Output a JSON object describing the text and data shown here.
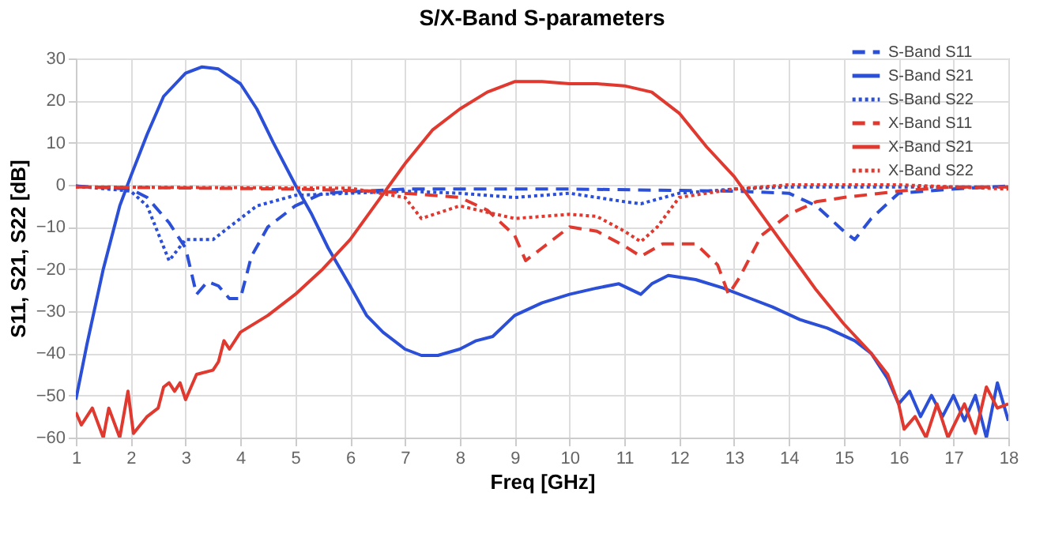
{
  "chart_data": {
    "type": "line",
    "title": "S/X-Band S-parameters",
    "xlabel": "Freq [GHz]",
    "ylabel": "S11, S21, S22 [dB]",
    "xlim": [
      1,
      18
    ],
    "xticks": [
      1,
      2,
      3,
      4,
      5,
      6,
      7,
      8,
      9,
      10,
      11,
      12,
      13,
      14,
      15,
      16,
      17,
      18
    ],
    "ylim": [
      -60,
      30
    ],
    "yticks": [
      -60,
      -50,
      -40,
      -30,
      -20,
      -10,
      0,
      10,
      20,
      30
    ],
    "grid": true,
    "legend": "top right",
    "series": [
      {
        "name": "S-Band S11",
        "color": "#2b4fd6",
        "line_style": "dashed",
        "x": [
          1,
          2,
          2.3,
          2.7,
          3,
          3.2,
          3.4,
          3.6,
          3.8,
          4,
          4.2,
          4.5,
          5,
          5.5,
          7,
          10,
          13,
          14,
          14.5,
          15,
          15.2,
          15.5,
          16,
          17,
          18
        ],
        "values": [
          -0.3,
          -1,
          -3,
          -9,
          -15,
          -26,
          -23,
          -24,
          -27,
          -27,
          -17,
          -10,
          -5,
          -2,
          -1,
          -1,
          -1.5,
          -2,
          -5,
          -11,
          -13,
          -8,
          -2,
          -1,
          -0.3
        ]
      },
      {
        "name": "S-Band S21",
        "color": "#2b4fd6",
        "line_style": "solid",
        "x": [
          1,
          1.2,
          1.5,
          1.8,
          2,
          2.3,
          2.6,
          3,
          3.3,
          3.6,
          4,
          4.3,
          4.6,
          5,
          5.3,
          5.6,
          6,
          6.3,
          6.6,
          7,
          7.3,
          7.6,
          8,
          8.3,
          8.6,
          9,
          9.5,
          10,
          10.5,
          10.9,
          11.3,
          11.5,
          11.8,
          12.3,
          12.8,
          13.3,
          13.7,
          14.2,
          14.7,
          15.2,
          15.5,
          15.8,
          16,
          16.2,
          16.4,
          16.6,
          16.8,
          17,
          17.2,
          17.4,
          17.6,
          17.8,
          18
        ],
        "values": [
          -51,
          -38,
          -20,
          -5,
          2,
          12,
          21,
          26.5,
          28,
          27.5,
          24,
          18,
          10,
          0,
          -7,
          -15,
          -24,
          -31,
          -35,
          -39,
          -40.5,
          -40.5,
          -39,
          -37,
          -36,
          -31,
          -28,
          -26,
          -24.5,
          -23.5,
          -26,
          -23.5,
          -21.5,
          -22.5,
          -24.5,
          -27,
          -29,
          -32,
          -34,
          -37,
          -40,
          -46,
          -52,
          -49,
          -55,
          -50,
          -55,
          -50,
          -56,
          -50,
          -60,
          -47,
          -56
        ]
      },
      {
        "name": "S-Band S22",
        "color": "#2b4fd6",
        "line_style": "dotted",
        "x": [
          1,
          2,
          2.3,
          2.7,
          3,
          3.5,
          3.8,
          4.3,
          5,
          6,
          7,
          8,
          9,
          10,
          11,
          11.3,
          12,
          13,
          14,
          16,
          18
        ],
        "values": [
          -0.3,
          -1.5,
          -5,
          -18,
          -13,
          -13,
          -10,
          -5,
          -2.5,
          -2,
          -1.5,
          -2,
          -3,
          -2,
          -4,
          -4.5,
          -2,
          -1,
          -0.5,
          -0.5,
          -0.5
        ]
      },
      {
        "name": "X-Band S11",
        "color": "#e0392f",
        "line_style": "dashed",
        "x": [
          1,
          5,
          6.5,
          7,
          8,
          8.5,
          9,
          9.2,
          9.5,
          10,
          10.5,
          11,
          11.3,
          11.7,
          12.3,
          12.7,
          12.9,
          13.1,
          13.5,
          14,
          14.5,
          15,
          16,
          17,
          18
        ],
        "values": [
          -0.5,
          -1,
          -1.5,
          -2,
          -3,
          -6,
          -12,
          -18,
          -15,
          -10,
          -11,
          -14.5,
          -17,
          -14,
          -14,
          -19,
          -26,
          -22,
          -12,
          -7,
          -4,
          -3,
          -1.5,
          -0.5,
          -0.5
        ]
      },
      {
        "name": "X-Band S21",
        "color": "#e0392f",
        "line_style": "solid",
        "x": [
          1,
          1.1,
          1.3,
          1.5,
          1.6,
          1.8,
          1.95,
          2.05,
          2.3,
          2.5,
          2.6,
          2.7,
          2.8,
          2.9,
          3,
          3.2,
          3.5,
          3.6,
          3.7,
          3.8,
          4,
          4.5,
          5,
          5.5,
          6,
          6.5,
          7,
          7.5,
          8,
          8.5,
          9,
          9.5,
          10,
          10.5,
          11,
          11.5,
          12,
          12.5,
          13,
          13.5,
          14,
          14.5,
          15,
          15.5,
          15.8,
          16,
          16.1,
          16.3,
          16.5,
          16.7,
          16.9,
          17.2,
          17.4,
          17.6,
          17.8,
          18
        ],
        "values": [
          -54,
          -57,
          -53,
          -60,
          -53,
          -60,
          -49,
          -59,
          -55,
          -53,
          -48,
          -47,
          -49,
          -47,
          -51,
          -45,
          -44,
          -42,
          -37,
          -39,
          -35,
          -31,
          -26,
          -20,
          -13,
          -4,
          5,
          13,
          18,
          22,
          24.5,
          24.5,
          24,
          24,
          23.5,
          22,
          17,
          9,
          2,
          -7,
          -16,
          -25,
          -33,
          -40,
          -45,
          -52,
          -58,
          -55,
          -60,
          -52,
          -60,
          -52,
          -59,
          -48,
          -53,
          -52
        ]
      },
      {
        "name": "X-Band S22",
        "color": "#e0392f",
        "line_style": "dotted",
        "x": [
          1,
          6,
          7,
          7.3,
          8,
          9,
          10,
          10.5,
          11,
          11.3,
          11.6,
          12,
          13,
          14,
          16,
          18
        ],
        "values": [
          -0.5,
          -0.8,
          -3,
          -8,
          -5,
          -8,
          -7,
          -7.5,
          -11,
          -13.5,
          -10,
          -3,
          -1,
          0,
          0,
          -1
        ]
      }
    ]
  }
}
